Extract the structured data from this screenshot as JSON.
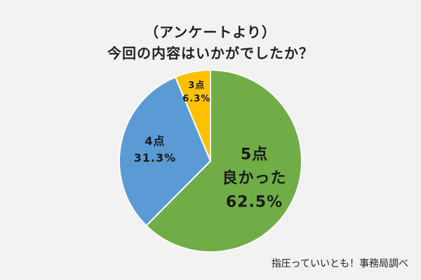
{
  "title": {
    "line1": "（アンケートより）",
    "line2": "今回の内容はいかがでしたか？"
  },
  "source": "指圧っていいとも！事務局調べ",
  "chart_data": {
    "type": "pie",
    "start": "12 o'clock",
    "direction": "clockwise",
    "slices": [
      {
        "name": "5点",
        "sublabel": "良かった",
        "value": 62.5,
        "value_label": "62.5%",
        "color": "#70ad47"
      },
      {
        "name": "4点",
        "sublabel": "",
        "value": 31.3,
        "value_label": "31.3%",
        "color": "#5b9bd5"
      },
      {
        "name": "3点",
        "sublabel": "",
        "value": 6.3,
        "value_label": "6.3%",
        "color": "#ffc000"
      }
    ]
  }
}
